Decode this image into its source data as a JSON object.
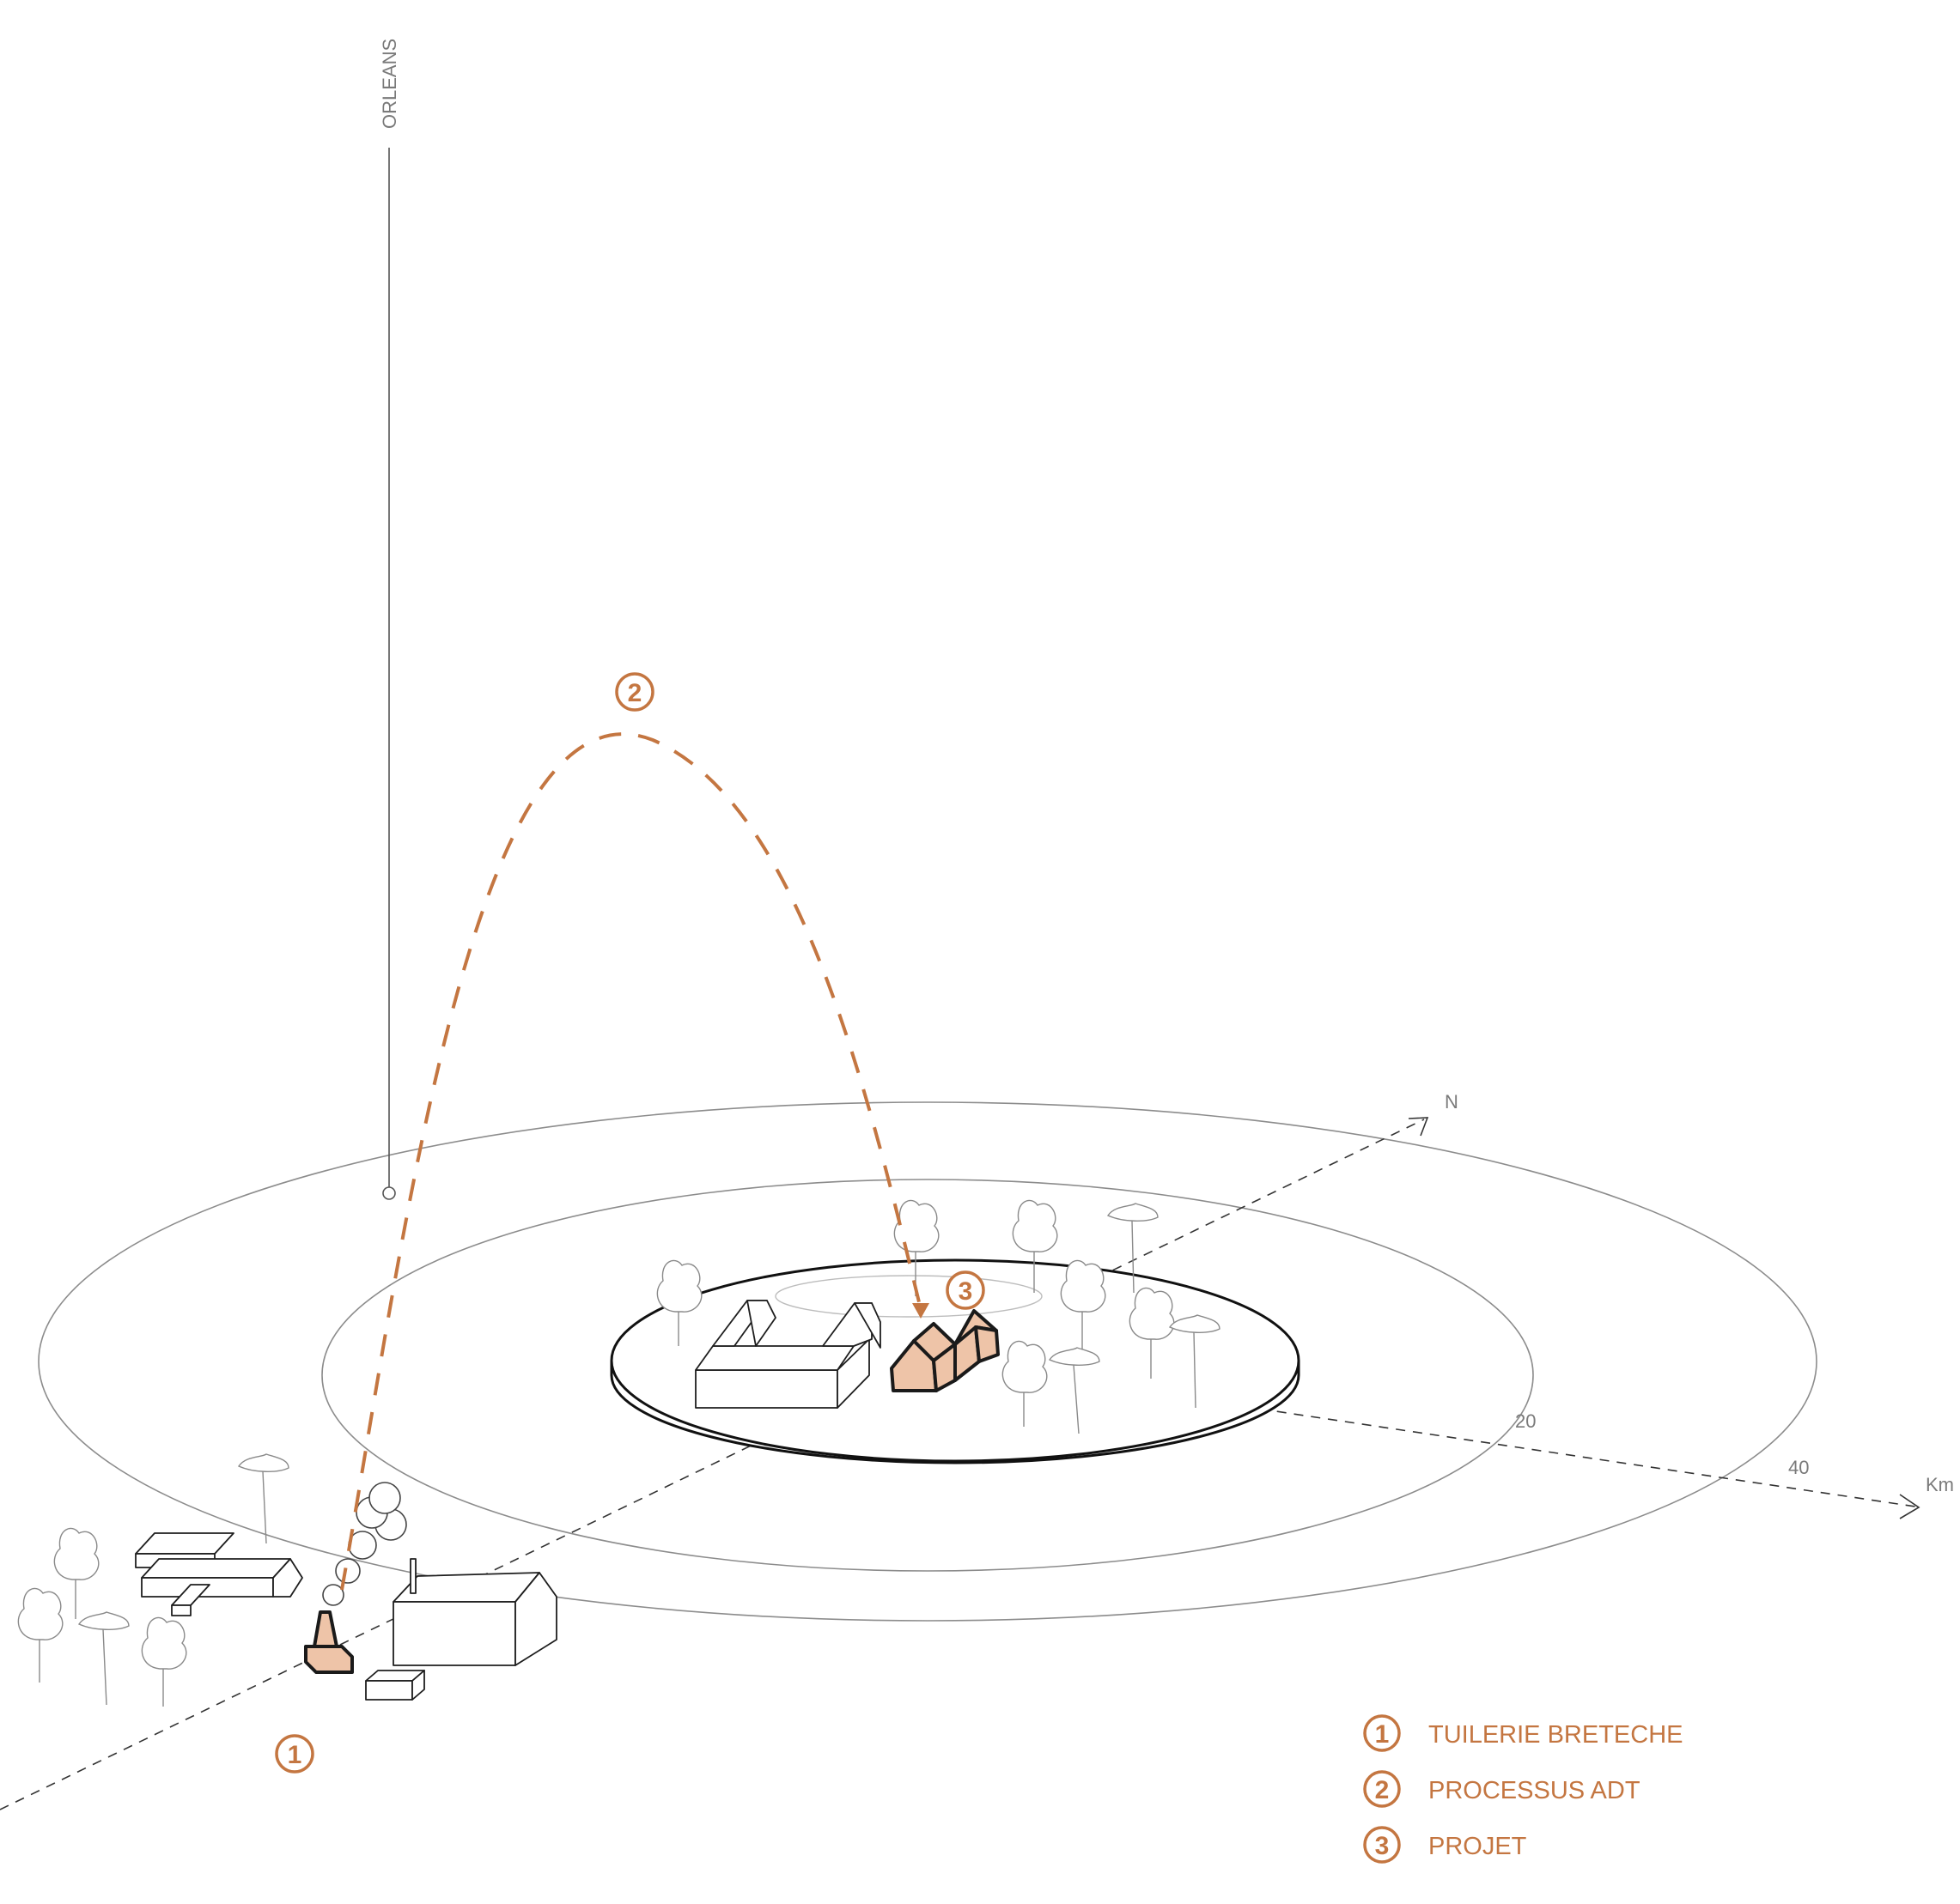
{
  "labels": {
    "city": "ORLEANS",
    "north": "N",
    "unit": "Km",
    "ring_inner": "20",
    "ring_outer": "40"
  },
  "markers": [
    {
      "num": "1",
      "ref": "tuilerie"
    },
    {
      "num": "2",
      "ref": "processus"
    },
    {
      "num": "3",
      "ref": "projet"
    }
  ],
  "legend": [
    {
      "num": "1",
      "text": "TUILERIE BRETECHE"
    },
    {
      "num": "2",
      "text": "PROCESSUS ADT"
    },
    {
      "num": "3",
      "text": "PROJET"
    }
  ],
  "colors": {
    "accent": "#c47641",
    "highlight_fill": "#eec4a8",
    "line": "#8c8c8c"
  }
}
